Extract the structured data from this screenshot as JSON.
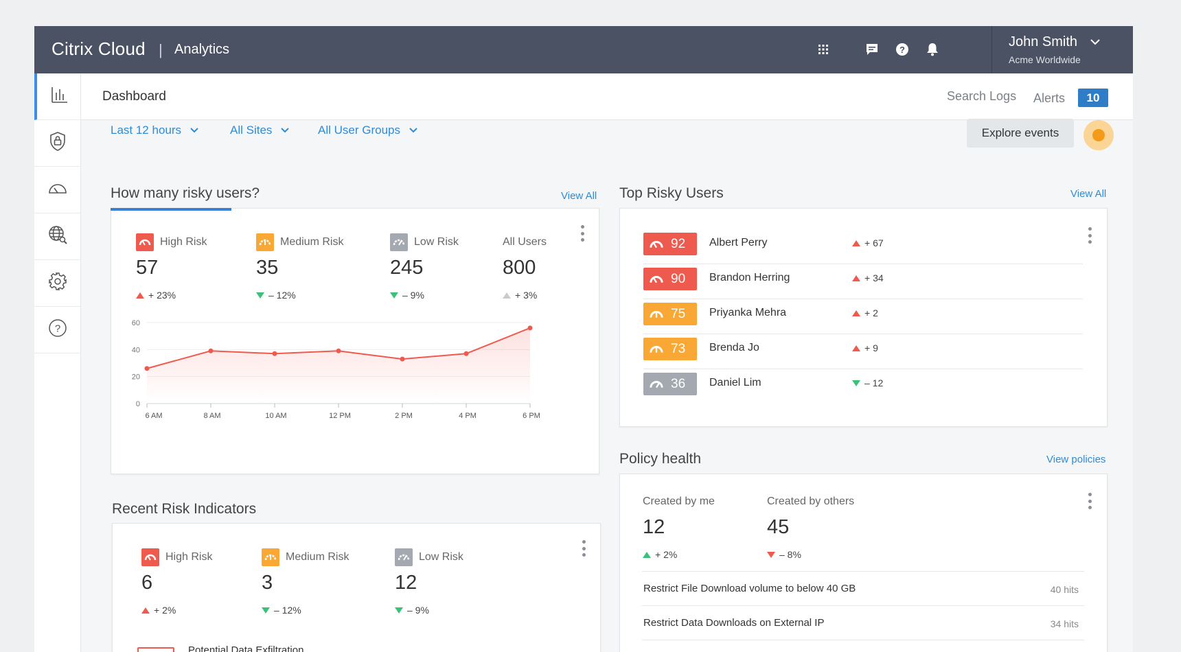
{
  "header": {
    "brand_citrix": "Citrix",
    "brand_cloud": "Cloud",
    "separator": "|",
    "product": "Analytics",
    "user_name": "John Smith",
    "user_org": "Acme Worldwide",
    "icons": [
      "apps-grid-icon",
      "chat-icon",
      "help-icon",
      "bell-icon",
      "chevron-down-icon"
    ]
  },
  "sidebar": {
    "items": [
      "chart-icon",
      "shield-lock-icon",
      "gauge-icon",
      "globe-search-icon",
      "gear-icon",
      "help-circle-icon"
    ]
  },
  "subheader": {
    "title": "Dashboard",
    "search_logs": "Search Logs",
    "alerts_label": "Alerts",
    "alerts_count": "10"
  },
  "filters": {
    "time": "Last 12 hours",
    "sites": "All Sites",
    "groups": "All User Groups",
    "explore": "Explore events"
  },
  "risky_users": {
    "title": "How many risky users?",
    "view_all": "View All",
    "metrics": [
      {
        "label": "High Risk",
        "value": "57",
        "delta": "+ 23%",
        "direction": "up",
        "color": "#ef5a4f"
      },
      {
        "label": "Medium Risk",
        "value": "35",
        "delta": "– 12%",
        "direction": "down",
        "color": "#f9a835"
      },
      {
        "label": "Low Risk",
        "value": "245",
        "delta": "– 9%",
        "direction": "down",
        "color": "#a4a9b1"
      },
      {
        "label": "All Users",
        "value": "800",
        "delta": "+ 3%",
        "direction": "up-grey",
        "color": ""
      }
    ]
  },
  "chart_data": {
    "type": "area",
    "x": [
      "6 AM",
      "8 AM",
      "10 AM",
      "12 PM",
      "2 PM",
      "4 PM",
      "6 PM"
    ],
    "y_ticks": [
      "0",
      "20",
      "40",
      "60"
    ],
    "ylim": [
      0,
      60
    ],
    "series": [
      {
        "x": [
          6,
          8,
          10,
          12,
          14,
          16,
          18
        ],
        "values": [
          26,
          39,
          37,
          39,
          33,
          37,
          56
        ]
      }
    ],
    "line_color": "#ef5a4f",
    "grid": true
  },
  "top_risky_users": {
    "title": "Top Risky Users",
    "view_all": "View All",
    "rows": [
      {
        "score": "92",
        "name": "Albert Perry",
        "delta": "+ 67",
        "direction": "up",
        "color": "#ef5a4f"
      },
      {
        "score": "90",
        "name": "Brandon Herring",
        "delta": "+ 34",
        "direction": "up",
        "color": "#ef5a4f"
      },
      {
        "score": "75",
        "name": "Priyanka Mehra",
        "delta": "+ 2",
        "direction": "up",
        "color": "#f9a835"
      },
      {
        "score": "73",
        "name": "Brenda Jo",
        "delta": "+ 9",
        "direction": "up",
        "color": "#f9a835"
      },
      {
        "score": "36",
        "name": "Daniel Lim",
        "delta": "– 12",
        "direction": "down",
        "color": "#a4a9b1"
      }
    ]
  },
  "policy_health": {
    "title": "Policy health",
    "view_link": "View policies",
    "created_by_me_label": "Created by me",
    "created_by_me_value": "12",
    "created_by_me_delta": "+ 2%",
    "created_by_others_label": "Created by others",
    "created_by_others_value": "45",
    "created_by_others_delta": "– 8%",
    "policies": [
      {
        "name": "Restrict File Download volume to below 40 GB",
        "hits": "40 hits"
      },
      {
        "name": "Restrict Data Downloads on External IP",
        "hits": "34 hits"
      }
    ]
  },
  "recent_indicators": {
    "title": "Recent Risk Indicators",
    "metrics": [
      {
        "label": "High Risk",
        "value": "6",
        "delta": "+ 2%",
        "direction": "up",
        "color": "#ef5a4f"
      },
      {
        "label": "Medium Risk",
        "value": "3",
        "delta": "– 12%",
        "direction": "down",
        "color": "#f9a835"
      },
      {
        "label": "Low Risk",
        "value": "12",
        "delta": "– 9%",
        "direction": "down",
        "color": "#a4a9b1"
      }
    ],
    "first_item": "Potential Data Exfiltration"
  }
}
